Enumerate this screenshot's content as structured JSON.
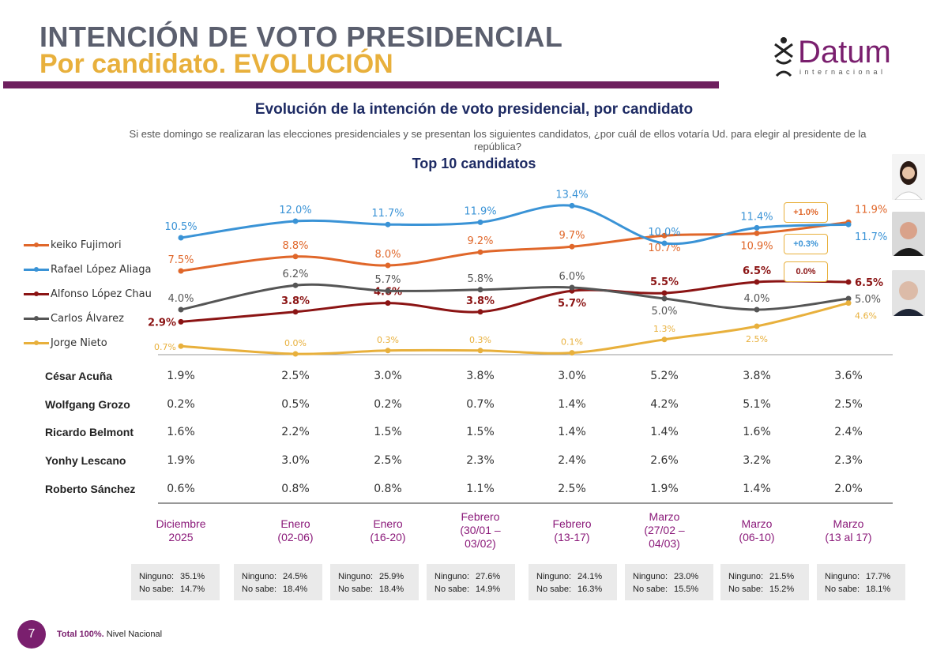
{
  "header": {
    "title": "INTENCIÓN DE VOTO PRESIDENCIAL",
    "subtitle": "Por candidato. EVOLUCIÓN",
    "logo_word": "Datum",
    "logo_sub": "internacional"
  },
  "chart_data": {
    "type": "line",
    "title": "Evolución de la intención de voto presidencial, por candidato",
    "question": "Si este domingo se realizaran las elecciones presidenciales y se presentan los siguientes candidatos, ¿por cuál de ellos votaría Ud. para elegir al presidente de la república?",
    "subtitle": "Top 10  candidatos",
    "categories": [
      [
        "Diciembre",
        "2025"
      ],
      [
        "Enero",
        "(02-06)"
      ],
      [
        "Enero",
        "(16-20)"
      ],
      [
        "Febrero",
        "(30/01 –",
        "03/02)"
      ],
      [
        "Febrero",
        "(13-17)"
      ],
      [
        "Marzo",
        "(27/02 –",
        "04/03)"
      ],
      [
        "Marzo",
        "(06-10)"
      ],
      [
        "Marzo",
        "(13 al 17)"
      ]
    ],
    "legend_position": "left",
    "series": [
      {
        "name": "keiko Fujimori",
        "color": "#e0672a",
        "values": [
          7.5,
          8.8,
          8.0,
          9.2,
          9.7,
          10.7,
          10.9,
          11.9
        ]
      },
      {
        "name": "Rafael López Aliaga",
        "color": "#3a93d6",
        "values": [
          10.5,
          12.0,
          11.7,
          11.9,
          13.4,
          10.0,
          11.4,
          11.7
        ]
      },
      {
        "name": "Alfonso López Chau",
        "color": "#8b1414",
        "values": [
          2.9,
          3.8,
          4.6,
          3.8,
          5.7,
          5.5,
          6.5,
          6.5
        ]
      },
      {
        "name": "Carlos Álvarez",
        "color": "#555555",
        "values": [
          4.0,
          6.2,
          5.7,
          5.8,
          6.0,
          5.0,
          4.0,
          5.0
        ]
      },
      {
        "name": "Jorge Nieto",
        "color": "#e8b03c",
        "values": [
          0.7,
          0.0,
          0.3,
          0.3,
          0.1,
          1.3,
          2.5,
          4.6
        ]
      }
    ],
    "deltas": [
      {
        "label": "+1.0%",
        "color": "#e0672a"
      },
      {
        "label": "+0.3%",
        "color": "#3a93d6"
      },
      {
        "label": "0.0%",
        "color": "#8b1414"
      }
    ],
    "table": [
      {
        "name": "César Acuña",
        "values": [
          "1.9%",
          "2.5%",
          "3.0%",
          "3.8%",
          "3.0%",
          "5.2%",
          "3.8%",
          "3.6%"
        ]
      },
      {
        "name": "Wolfgang Grozo",
        "values": [
          "0.2%",
          "0.5%",
          "0.2%",
          "0.7%",
          "1.4%",
          "4.2%",
          "5.1%",
          "2.5%"
        ]
      },
      {
        "name": "Ricardo Belmont",
        "values": [
          "1.6%",
          "2.2%",
          "1.5%",
          "1.5%",
          "1.4%",
          "1.4%",
          "1.6%",
          "2.4%"
        ]
      },
      {
        "name": "Yonhy Lescano",
        "values": [
          "1.9%",
          "3.0%",
          "2.5%",
          "2.3%",
          "2.4%",
          "2.6%",
          "3.2%",
          "2.3%"
        ]
      },
      {
        "name": "Roberto Sánchez",
        "values": [
          "0.6%",
          "0.8%",
          "0.8%",
          "1.1%",
          "2.5%",
          "1.9%",
          "1.4%",
          "2.0%"
        ]
      }
    ],
    "others": [
      {
        "ninguno": "35.1%",
        "no_sabe": "14.7%"
      },
      {
        "ninguno": "24.5%",
        "no_sabe": "18.4%"
      },
      {
        "ninguno": "25.9%",
        "no_sabe": "18.4%"
      },
      {
        "ninguno": "27.6%",
        "no_sabe": "14.9%"
      },
      {
        "ninguno": "24.1%",
        "no_sabe": "16.3%"
      },
      {
        "ninguno": "23.0%",
        "no_sabe": "15.5%"
      },
      {
        "ninguno": "21.5%",
        "no_sabe": "15.2%"
      },
      {
        "ninguno": "17.7%",
        "no_sabe": "18.1%"
      }
    ],
    "others_labels": {
      "ninguno": "Ninguno:",
      "no_sabe": "No sabe:"
    }
  },
  "footer": {
    "page_number": "7",
    "total": "Total 100%.",
    "scope": "Nivel Nacional"
  }
}
